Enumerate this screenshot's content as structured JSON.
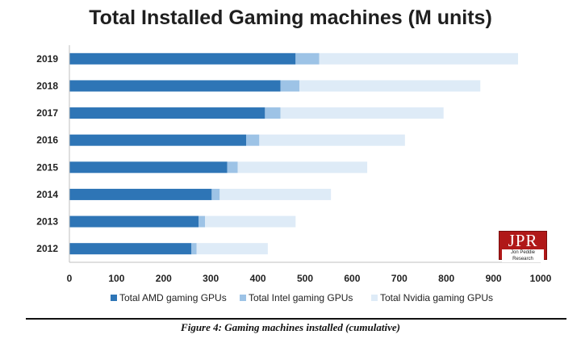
{
  "chart_data": {
    "type": "bar",
    "orientation": "horizontal",
    "stacked": true,
    "title": "Total Installed Gaming machines (M units)",
    "categories": [
      "2019",
      "2018",
      "2017",
      "2016",
      "2015",
      "2014",
      "2013",
      "2012"
    ],
    "series": [
      {
        "name": "Total AMD gaming GPUs",
        "color": "#2e75b6",
        "values": [
          480,
          448,
          415,
          375,
          335,
          302,
          274,
          259
        ]
      },
      {
        "name": "Total Intel gaming GPUs",
        "color": "#9dc3e6",
        "values": [
          50,
          40,
          33,
          28,
          22,
          17,
          14,
          11
        ]
      },
      {
        "name": "Total Nvidia gaming GPUs",
        "color": "#deebf7",
        "values": [
          422,
          384,
          346,
          309,
          275,
          236,
          192,
          151
        ]
      }
    ],
    "xlim": [
      0,
      1000
    ],
    "xticks": [
      "0",
      "100",
      "200",
      "300",
      "400",
      "500",
      "600",
      "700",
      "800",
      "900",
      "1000"
    ],
    "xlabel": "",
    "ylabel": "",
    "grid": false,
    "legend_position": "bottom"
  },
  "logo": {
    "text": "JPR",
    "subtext": "Jon Peddie Research"
  },
  "caption": "Figure 4: Gaming machines installed (cumulative)"
}
